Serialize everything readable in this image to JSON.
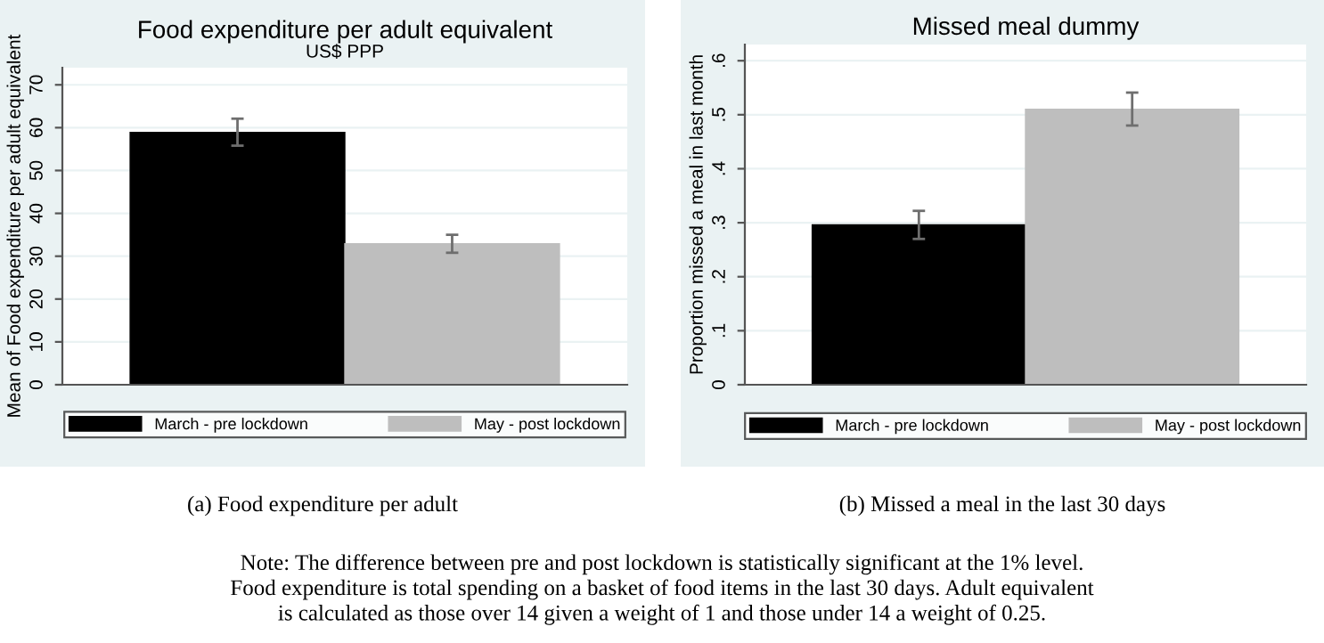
{
  "chart_data": [
    {
      "type": "bar",
      "title": "Food expenditure per adult equivalent",
      "subtitle": "US$ PPP",
      "ylabel": "Mean of Food expenditure per adult equivalent",
      "categories": [
        null
      ],
      "series": [
        {
          "name": "March - pre lockdown",
          "color": "#000000",
          "values": [
            58.9
          ],
          "errors": [
            [
              55.8,
              62.1
            ]
          ]
        },
        {
          "name": "May - post lockdown",
          "color": "#bebebe",
          "values": [
            32.9
          ],
          "errors": [
            [
              30.8,
              35.0
            ]
          ]
        }
      ],
      "ylim": [
        0,
        74
      ],
      "yticks": [
        0,
        10,
        20,
        30,
        40,
        50,
        60,
        70
      ],
      "grid": "y",
      "legend": "bottom",
      "annotations": [
        "(a) Food expenditure per adult",
        "Note: The difference between pre and post lockdown is statistically significant at the 1% level.\nFood expenditure is total spending on a basket of food items in the last 30 days. Adult equivalent\nis calculated as those over 14 given a weight of 1 and those under 14 a weight of 0.25."
      ]
    },
    {
      "type": "bar",
      "title": "Missed meal dummy",
      "ylabel": "Proportion missed a meal in last month",
      "categories": [
        null
      ],
      "series": [
        {
          "name": "March - pre lockdown",
          "color": "#000000",
          "values": [
            0.296
          ],
          "errors": [
            [
              0.27,
              0.322
            ]
          ]
        },
        {
          "name": "May - post lockdown",
          "color": "#bebebe",
          "values": [
            0.51
          ],
          "errors": [
            [
              0.48,
              0.541
            ]
          ]
        }
      ],
      "ylim": [
        0,
        0.63
      ],
      "yticks": [
        {
          "value": 0,
          "label": "0"
        },
        {
          "value": 0.1,
          "label": ".1"
        },
        {
          "value": 0.2,
          "label": ".2"
        },
        {
          "value": 0.3,
          "label": ".3"
        },
        {
          "value": 0.4,
          "label": ".4"
        },
        {
          "value": 0.5,
          "label": ".5"
        },
        {
          "value": 0.6,
          "label": ".6"
        }
      ],
      "grid": "y",
      "legend": "bottom",
      "annotations": [
        "(b) Missed a meal in the last 30 days"
      ]
    }
  ]
}
